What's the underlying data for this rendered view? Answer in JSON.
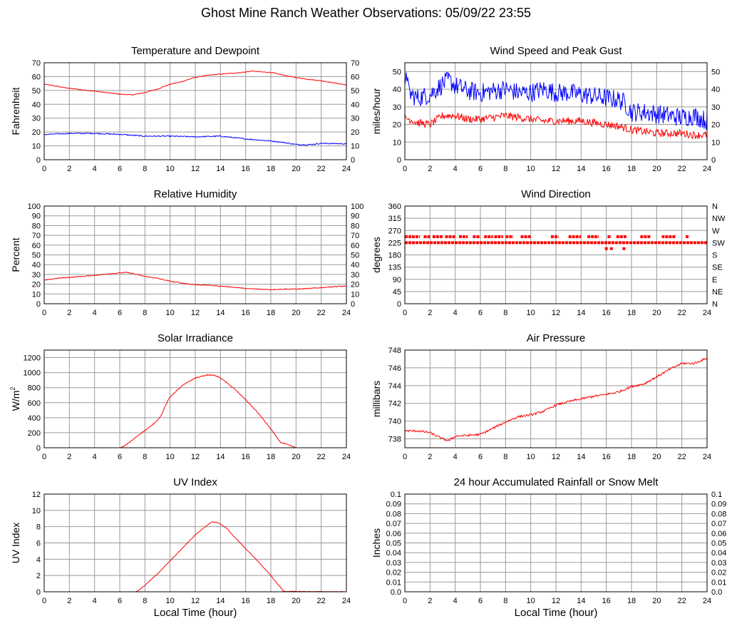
{
  "page": {
    "title": "Ghost Mine Ranch Weather Observations: 05/09/22 23:55"
  },
  "colors": {
    "temperature": "#ff0000",
    "dewpoint": "#0000ff",
    "wind_gust": "#0000ff",
    "wind_speed": "#ff0000",
    "grid": "#9a9a9a",
    "frame": "#000000"
  },
  "chart_data": [
    {
      "id": "temp",
      "type": "line",
      "title": "Temperature and Dewpoint",
      "ylabel": "Fahrenheit",
      "xlim": [
        0,
        24
      ],
      "ylim": [
        0,
        70
      ],
      "xticks": [
        0,
        2,
        4,
        6,
        8,
        10,
        12,
        14,
        16,
        18,
        20,
        22,
        24
      ],
      "yticks": [
        0,
        10,
        20,
        30,
        40,
        50,
        60,
        70
      ],
      "right_axis": true,
      "grid": true,
      "series": [
        {
          "color": "#ff0000",
          "noise": 0.25,
          "x": [
            0,
            2,
            4,
            6,
            7,
            8,
            9,
            10,
            11,
            12,
            13,
            14,
            15,
            16,
            16.5,
            17,
            18,
            19,
            20,
            21,
            22,
            23,
            24
          ],
          "values": [
            54.5,
            51.5,
            49.5,
            47.3,
            46.8,
            48.5,
            51,
            54.5,
            56.5,
            59.5,
            61,
            61.8,
            62.5,
            63.3,
            64,
            63.5,
            63,
            61,
            59.3,
            58,
            57,
            55.5,
            54
          ]
        },
        {
          "color": "#0000ff",
          "noise": 0.4,
          "x": [
            0,
            2,
            4,
            6,
            8,
            10,
            12,
            14,
            16,
            18,
            19,
            20,
            21,
            22,
            24
          ],
          "values": [
            18.2,
            19,
            19,
            18.3,
            17,
            17,
            16.5,
            17,
            15,
            13.5,
            12.5,
            11,
            10.8,
            11.8,
            11.5
          ]
        }
      ]
    },
    {
      "id": "wind",
      "type": "line",
      "title": "Wind Speed and Peak Gust",
      "ylabel": "miles/hour",
      "xlim": [
        0,
        24
      ],
      "ylim": [
        0,
        55
      ],
      "xticks": [
        0,
        2,
        4,
        6,
        8,
        10,
        12,
        14,
        16,
        18,
        20,
        22,
        24
      ],
      "yticks": [
        0,
        10,
        20,
        30,
        40,
        50
      ],
      "right_axis": true,
      "grid": true,
      "series": [
        {
          "color": "#0000ff",
          "noise": 5.5,
          "x": [
            0,
            0.1,
            0.3,
            1,
            2,
            3,
            3.5,
            4,
            5,
            6,
            7,
            8,
            9,
            10,
            11,
            12,
            13,
            14,
            15,
            16,
            17,
            17.5,
            18,
            19,
            20,
            21,
            22,
            23,
            24
          ],
          "values": [
            38,
            54,
            38,
            35,
            37,
            43,
            45,
            42,
            39,
            38,
            39,
            40,
            38,
            38,
            40,
            38,
            38,
            37,
            36,
            35,
            34,
            32,
            27,
            27,
            26,
            25,
            24,
            25,
            22
          ]
        },
        {
          "color": "#ff0000",
          "noise": 2.2,
          "x": [
            0,
            1,
            2,
            3,
            4,
            5,
            6,
            7,
            8,
            9,
            10,
            11,
            12,
            13,
            14,
            15,
            16,
            17,
            18,
            19,
            20,
            21,
            22,
            23,
            24
          ],
          "values": [
            24,
            21,
            20,
            25,
            25,
            23,
            23,
            24,
            25,
            24,
            23,
            22,
            22,
            22,
            22,
            21,
            20,
            19,
            17,
            16,
            15,
            15,
            15,
            14,
            14
          ]
        }
      ]
    },
    {
      "id": "rh",
      "type": "line",
      "title": "Relative Humidity",
      "ylabel": "Percent",
      "xlim": [
        0,
        24
      ],
      "ylim": [
        0,
        100
      ],
      "xticks": [
        0,
        2,
        4,
        6,
        8,
        10,
        12,
        14,
        16,
        18,
        20,
        22,
        24
      ],
      "yticks": [
        0,
        10,
        20,
        30,
        40,
        50,
        60,
        70,
        80,
        90,
        100
      ],
      "right_axis": true,
      "grid": true,
      "series": [
        {
          "color": "#ff0000",
          "noise": 0.45,
          "x": [
            0,
            1,
            2,
            3,
            4,
            5,
            6,
            6.5,
            7,
            8,
            9,
            10,
            11,
            12,
            13,
            14,
            15,
            16,
            17,
            18,
            19,
            20,
            21,
            22,
            23,
            24
          ],
          "values": [
            24,
            26,
            27,
            28,
            29,
            30.5,
            31.5,
            32,
            31,
            28,
            26,
            23,
            21,
            19.5,
            19,
            18,
            17,
            15.5,
            15,
            14.5,
            15,
            15,
            15.5,
            16.5,
            17.5,
            18
          ]
        }
      ]
    },
    {
      "id": "dir",
      "type": "scatter",
      "title": "Wind Direction",
      "ylabel": "degrees",
      "xlim": [
        0,
        24
      ],
      "ylim": [
        0,
        360
      ],
      "xticks": [
        0,
        2,
        4,
        6,
        8,
        10,
        12,
        14,
        16,
        18,
        20,
        22,
        24
      ],
      "yticks": [
        0,
        45,
        90,
        135,
        180,
        225,
        270,
        315,
        360
      ],
      "right_tick_labels": [
        "N",
        "NE",
        "E",
        "SE",
        "S",
        "SW",
        "W",
        "NW",
        "N"
      ],
      "grid": true,
      "series": [
        {
          "color": "#ff0000",
          "dash_pattern": true,
          "runs": [
            [
              0,
              24,
              225
            ]
          ],
          "upper_runs": [
            [
              0,
              1.2,
              247
            ],
            [
              1.5,
              2,
              247
            ],
            [
              2.2,
              3,
              247
            ],
            [
              3.2,
              4,
              247
            ],
            [
              4.3,
              5,
              247
            ],
            [
              5.4,
              6,
              247
            ],
            [
              6.3,
              7,
              247
            ],
            [
              7.1,
              7.8,
              247
            ],
            [
              8,
              8.6,
              247
            ],
            [
              9.2,
              10,
              247
            ],
            [
              11.6,
              12.2,
              247
            ],
            [
              13,
              14,
              247
            ],
            [
              14.5,
              15.4,
              247
            ],
            [
              16.1,
              16.4,
              247
            ],
            [
              16.8,
              17.6,
              247
            ],
            [
              18.7,
              19.5,
              247
            ],
            [
              20.4,
              21.5,
              247
            ],
            [
              22.3,
              22.6,
              247
            ]
          ],
          "low_points": [
            [
              16,
              203
            ],
            [
              16.4,
              203
            ],
            [
              17.4,
              203
            ]
          ]
        }
      ]
    },
    {
      "id": "solar",
      "type": "line",
      "title": "Solar Irradiance",
      "ylabel": "W/m",
      "ylabel_sup": "2",
      "xlim": [
        0,
        24
      ],
      "ylim": [
        0,
        1300
      ],
      "xticks": [
        0,
        2,
        4,
        6,
        8,
        10,
        12,
        14,
        16,
        18,
        20,
        22,
        24
      ],
      "yticks": [
        0,
        200,
        400,
        600,
        800,
        1000,
        1200
      ],
      "right_axis": false,
      "grid": true,
      "series": [
        {
          "color": "#ff0000",
          "noise": 6,
          "x": [
            0,
            6.1,
            6.5,
            7,
            7.5,
            8,
            8.5,
            9,
            9.3,
            9.6,
            10,
            11,
            12,
            13,
            13.5,
            14,
            15,
            16,
            17,
            18,
            18.5,
            18.8,
            19,
            19.5,
            20,
            24
          ],
          "values": [
            0,
            0,
            40,
            100,
            170,
            230,
            290,
            370,
            430,
            550,
            680,
            830,
            930,
            970,
            965,
            930,
            800,
            640,
            460,
            250,
            130,
            70,
            60,
            30,
            0,
            0
          ]
        }
      ]
    },
    {
      "id": "pressure",
      "type": "line",
      "title": "Air Pressure",
      "ylabel": "millibars",
      "xlim": [
        0,
        24
      ],
      "ylim": [
        737,
        748
      ],
      "xticks": [
        0,
        2,
        4,
        6,
        8,
        10,
        12,
        14,
        16,
        18,
        20,
        22,
        24
      ],
      "yticks": [
        738,
        740,
        742,
        744,
        746,
        748
      ],
      "right_axis": false,
      "grid": true,
      "series": [
        {
          "color": "#ff0000",
          "noise": 0.12,
          "x": [
            0,
            1,
            2,
            3,
            3.5,
            4,
            5,
            6,
            7,
            8,
            9,
            10,
            11,
            12,
            13,
            14,
            15,
            16,
            17,
            18,
            19,
            20,
            21,
            22,
            23,
            24
          ],
          "values": [
            738.9,
            738.9,
            738.7,
            738.0,
            737.8,
            738.3,
            738.4,
            738.5,
            739.2,
            739.9,
            740.5,
            740.7,
            741.1,
            741.8,
            742.2,
            742.5,
            742.8,
            743.0,
            743.3,
            743.9,
            744.2,
            745.0,
            745.8,
            746.5,
            746.5,
            747.1
          ]
        }
      ]
    },
    {
      "id": "uv",
      "type": "line",
      "title": "UV Index",
      "ylabel": "UV Index",
      "xlabel": "Local Time (hour)",
      "xlim": [
        0,
        24
      ],
      "ylim": [
        0,
        12
      ],
      "xticks": [
        0,
        2,
        4,
        6,
        8,
        10,
        12,
        14,
        16,
        18,
        20,
        22,
        24
      ],
      "yticks": [
        0,
        2,
        4,
        6,
        8,
        10,
        12
      ],
      "right_axis": false,
      "grid": true,
      "series": [
        {
          "color": "#ff0000",
          "noise": 0.03,
          "x": [
            0,
            7.3,
            7.6,
            8,
            9,
            10,
            11,
            12,
            12.8,
            13.3,
            13.8,
            14.5,
            15,
            16,
            17,
            18,
            18.5,
            18.8,
            19,
            24
          ],
          "values": [
            0,
            0,
            0.3,
            0.8,
            2.2,
            3.8,
            5.4,
            7,
            8,
            8.6,
            8.5,
            7.8,
            6.9,
            5.3,
            3.7,
            2,
            1,
            0.5,
            0.05,
            0
          ]
        }
      ]
    },
    {
      "id": "rain",
      "type": "line",
      "title": "24 hour Accumulated Rainfall or Snow Melt",
      "ylabel": "Inches",
      "xlabel": "Local Time (hour)",
      "xlim": [
        0,
        24
      ],
      "ylim": [
        0,
        0.1
      ],
      "xticks": [
        0,
        2,
        4,
        6,
        8,
        10,
        12,
        14,
        16,
        18,
        20,
        22,
        24
      ],
      "yticks": [
        0,
        0.01,
        0.02,
        0.03,
        0.04,
        0.05,
        0.06,
        0.07,
        0.08,
        0.09,
        0.1
      ],
      "ytick_labels": [
        "0.0",
        "0.01",
        "0.02",
        "0.03",
        "0.04",
        "0.05",
        "0.06",
        "0.07",
        "0.08",
        "0.09",
        "0.1"
      ],
      "right_axis": true,
      "grid": true,
      "series": [
        {
          "color": "#ff0000",
          "noise": 0,
          "x": [
            0,
            24
          ],
          "values": [
            0,
            0
          ]
        }
      ]
    }
  ]
}
